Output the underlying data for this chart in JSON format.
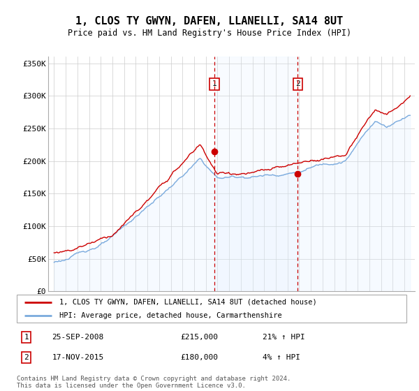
{
  "title": "1, CLOS TY GWYN, DAFEN, LLANELLI, SA14 8UT",
  "subtitle": "Price paid vs. HM Land Registry's House Price Index (HPI)",
  "ylim": [
    0,
    360000
  ],
  "yticks": [
    0,
    50000,
    100000,
    150000,
    200000,
    250000,
    300000,
    350000
  ],
  "ytick_labels": [
    "£0",
    "£50K",
    "£100K",
    "£150K",
    "£200K",
    "£250K",
    "£300K",
    "£350K"
  ],
  "sale1_date": "25-SEP-2008",
  "sale1_price": 215000,
  "sale1_hpi_pct": "21%",
  "sale1_x": 2008.73,
  "sale2_date": "17-NOV-2015",
  "sale2_price": 180000,
  "sale2_hpi_pct": "4%",
  "sale2_x": 2015.88,
  "red_line_color": "#cc0000",
  "blue_line_color": "#7aaadd",
  "blue_fill_color": "#ddeeff",
  "vline_color": "#cc0000",
  "marker_color": "#cc0000",
  "legend_line1": "1, CLOS TY GWYN, DAFEN, LLANELLI, SA14 8UT (detached house)",
  "legend_line2": "HPI: Average price, detached house, Carmarthenshire",
  "footer": "Contains HM Land Registry data © Crown copyright and database right 2024.\nThis data is licensed under the Open Government Licence v3.0.",
  "background_color": "#ffffff",
  "grid_color": "#cccccc"
}
